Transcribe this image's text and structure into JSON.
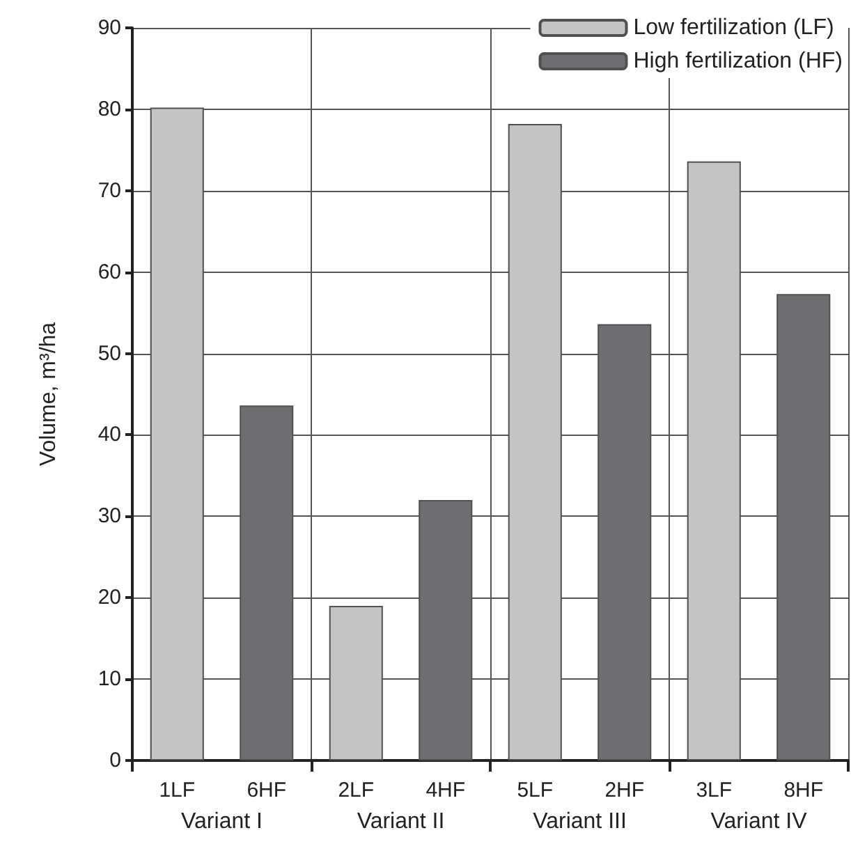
{
  "chart_data": {
    "type": "bar",
    "ylabel": "Volume, m³/ha",
    "categories": [
      "1LF",
      "6HF",
      "2LF",
      "4HF",
      "5LF",
      "2HF",
      "3LF",
      "8HF"
    ],
    "series": [
      {
        "name": "Low fertilization (LF)",
        "color": "#c3c4c6",
        "values": [
          80.2,
          null,
          19.0,
          null,
          78.2,
          null,
          73.6,
          null
        ]
      },
      {
        "name": "High fertilization (HF)",
        "color": "#6d6e72",
        "values": [
          null,
          43.6,
          null,
          32.0,
          null,
          53.6,
          null,
          57.3
        ]
      }
    ],
    "stacked": true,
    "annotations": [
      "Variant I",
      "Variant II",
      "Variant III",
      "Variant IV"
    ],
    "ylim": [
      0,
      90
    ],
    "yticks": [
      0,
      10,
      20,
      30,
      40,
      50,
      60,
      70,
      80,
      90
    ],
    "grid": true,
    "legend": "top right"
  }
}
